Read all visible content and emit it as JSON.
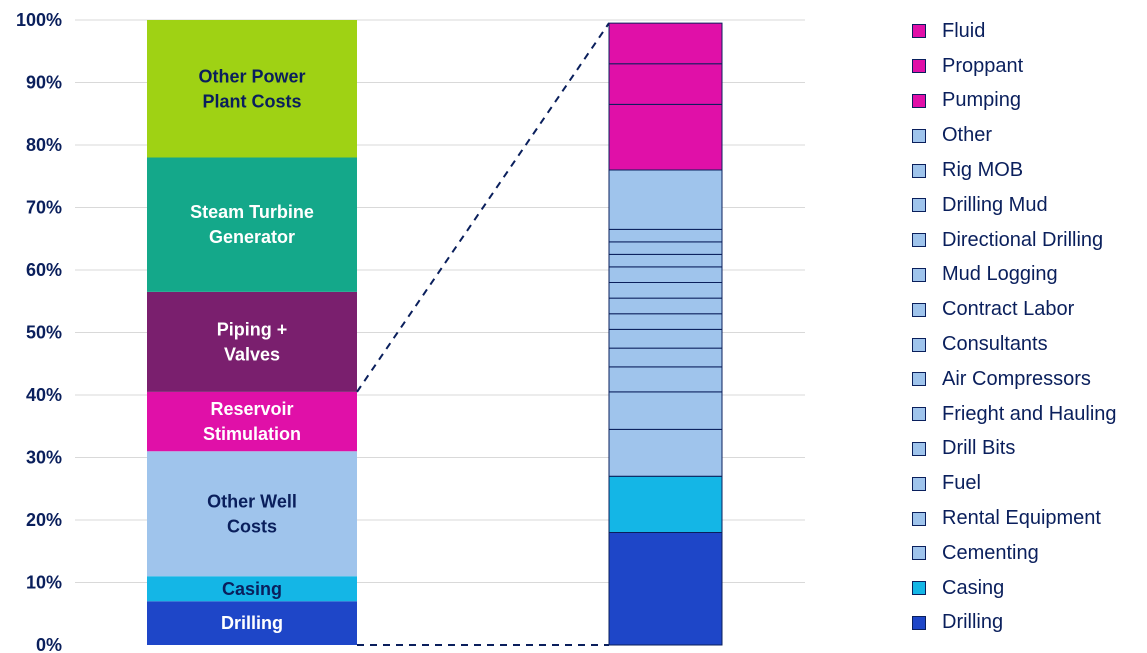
{
  "chart_data": {
    "type": "bar",
    "stacked": true,
    "ylim": [
      0,
      100
    ],
    "y_ticks": [
      "0%",
      "10%",
      "20%",
      "30%",
      "40%",
      "50%",
      "60%",
      "70%",
      "80%",
      "90%",
      "100%"
    ],
    "grid": true,
    "legend_position": "right",
    "bars": [
      {
        "segments": [
          {
            "label_lines": [
              "Drilling"
            ],
            "from": 0,
            "to": 7,
            "color": "#1e46c8",
            "text_color": "#ffffff"
          },
          {
            "label_lines": [
              "Casing"
            ],
            "from": 7,
            "to": 11,
            "color": "#14b6e6",
            "text_color": "#0a1f5c"
          },
          {
            "label_lines": [
              "Other Well",
              "Costs"
            ],
            "from": 11,
            "to": 31,
            "color": "#9fc4ec",
            "text_color": "#0a1f5c"
          },
          {
            "label_lines": [
              "Reservoir",
              "Stimulation"
            ],
            "from": 31,
            "to": 40.5,
            "color": "#e010a8",
            "text_color": "#ffffff"
          },
          {
            "label_lines": [
              "Piping +",
              "Valves"
            ],
            "from": 40.5,
            "to": 56.5,
            "color": "#7a1f6e",
            "text_color": "#ffffff"
          },
          {
            "label_lines": [
              "Steam Turbine",
              "Generator"
            ],
            "from": 56.5,
            "to": 78,
            "color": "#14a88a",
            "text_color": "#ffffff"
          },
          {
            "label_lines": [
              "Other Power",
              "Plant Costs"
            ],
            "from": 78,
            "to": 100,
            "color": "#9fd214",
            "text_color": "#0a1f5c"
          }
        ]
      },
      {
        "segments": [
          {
            "name": "Drilling",
            "from": 0,
            "to": 18,
            "color": "#1e46c8"
          },
          {
            "name": "Casing",
            "from": 18,
            "to": 27,
            "color": "#14b6e6"
          },
          {
            "name": "Cementing",
            "from": 27,
            "to": 34.5,
            "color": "#9fc4ec"
          },
          {
            "name": "Rental Equipment",
            "from": 34.5,
            "to": 40.5,
            "color": "#9fc4ec"
          },
          {
            "name": "Fuel",
            "from": 40.5,
            "to": 44.5,
            "color": "#9fc4ec"
          },
          {
            "name": "Drill Bits",
            "from": 44.5,
            "to": 47.5,
            "color": "#9fc4ec"
          },
          {
            "name": "Frieght and Hauling",
            "from": 47.5,
            "to": 50.5,
            "color": "#9fc4ec"
          },
          {
            "name": "Air Compressors",
            "from": 50.5,
            "to": 53,
            "color": "#9fc4ec"
          },
          {
            "name": "Consultants",
            "from": 53,
            "to": 55.5,
            "color": "#9fc4ec"
          },
          {
            "name": "Contract Labor",
            "from": 55.5,
            "to": 58,
            "color": "#9fc4ec"
          },
          {
            "name": "Mud Logging",
            "from": 58,
            "to": 60.5,
            "color": "#9fc4ec"
          },
          {
            "name": "Directional Drilling",
            "from": 60.5,
            "to": 62.5,
            "color": "#9fc4ec"
          },
          {
            "name": "Drilling Mud",
            "from": 62.5,
            "to": 64.5,
            "color": "#9fc4ec"
          },
          {
            "name": "Rig MOB",
            "from": 64.5,
            "to": 66.5,
            "color": "#9fc4ec"
          },
          {
            "name": "Other",
            "from": 66.5,
            "to": 76,
            "color": "#9fc4ec"
          },
          {
            "name": "Pumping",
            "from": 76,
            "to": 86.5,
            "color": "#e010a8"
          },
          {
            "name": "Proppant",
            "from": 86.5,
            "to": 93,
            "color": "#e010a8"
          },
          {
            "name": "Fluid",
            "from": 93,
            "to": 99.5,
            "color": "#e010a8"
          }
        ]
      }
    ],
    "legend": [
      {
        "name": "Fluid",
        "color": "#e010a8"
      },
      {
        "name": "Proppant",
        "color": "#e010a8"
      },
      {
        "name": "Pumping",
        "color": "#e010a8"
      },
      {
        "name": "Other",
        "color": "#9fc4ec"
      },
      {
        "name": "Rig MOB",
        "color": "#9fc4ec"
      },
      {
        "name": "Drilling Mud",
        "color": "#9fc4ec"
      },
      {
        "name": "Directional Drilling",
        "color": "#9fc4ec"
      },
      {
        "name": "Mud Logging",
        "color": "#9fc4ec"
      },
      {
        "name": "Contract Labor",
        "color": "#9fc4ec"
      },
      {
        "name": "Consultants",
        "color": "#9fc4ec"
      },
      {
        "name": "Air Compressors",
        "color": "#9fc4ec"
      },
      {
        "name": "Frieght and Hauling",
        "color": "#9fc4ec"
      },
      {
        "name": "Drill Bits",
        "color": "#9fc4ec"
      },
      {
        "name": "Fuel",
        "color": "#9fc4ec"
      },
      {
        "name": "Rental Equipment",
        "color": "#9fc4ec"
      },
      {
        "name": "Cementing",
        "color": "#9fc4ec"
      },
      {
        "name": "Casing",
        "color": "#14b6e6"
      },
      {
        "name": "Drilling",
        "color": "#1e46c8"
      }
    ],
    "zoom_connector": {
      "from_bar": 0,
      "to_bar": 1,
      "low": 0,
      "high": 40.5,
      "target_high": 99.5
    }
  }
}
